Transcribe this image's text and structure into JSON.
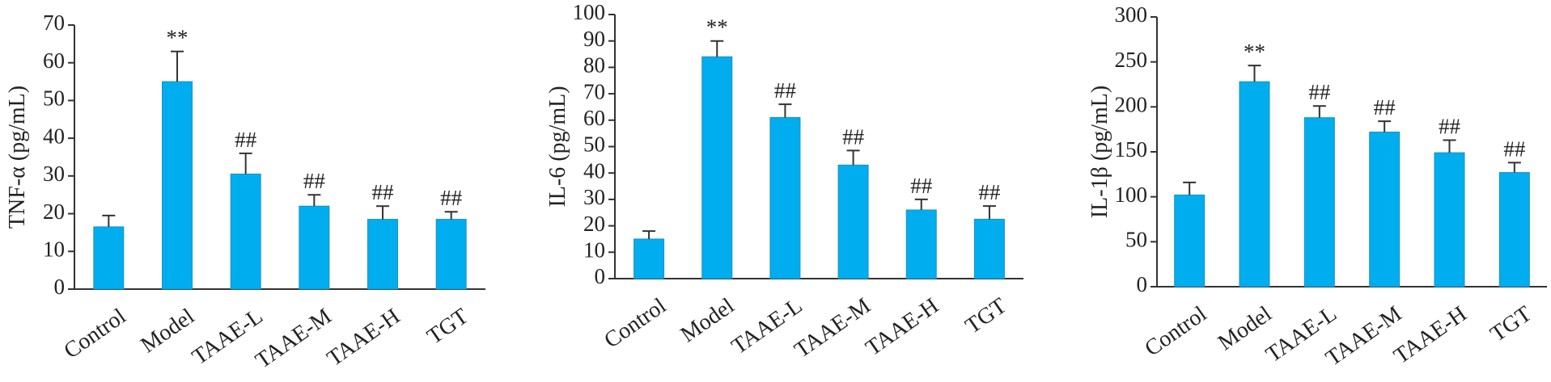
{
  "chart_data": [
    {
      "type": "bar",
      "ylabel": "TNF-α (pg/mL)",
      "color": "#00aeef",
      "categories": [
        "Control",
        "Model",
        "TAAE-L",
        "TAAE-M",
        "TAAE-H",
        "TGT"
      ],
      "values": [
        16.5,
        55,
        30.5,
        22,
        18.5,
        18.5
      ],
      "errors": [
        3,
        8,
        5.5,
        3,
        3.5,
        2
      ],
      "annotations": [
        null,
        "**",
        "##",
        "##",
        "##",
        "##"
      ],
      "ylim": [
        0,
        70
      ],
      "yticks": [
        0,
        10,
        20,
        30,
        40,
        50,
        60,
        70
      ]
    },
    {
      "type": "bar",
      "ylabel": "IL-6 (pg/mL)",
      "color": "#00aeef",
      "categories": [
        "Control",
        "Model",
        "TAAE-L",
        "TAAE-M",
        "TAAE-H",
        "TGT"
      ],
      "values": [
        15,
        84,
        61,
        43,
        26,
        22.5
      ],
      "errors": [
        3,
        6,
        5,
        5.5,
        4,
        5
      ],
      "annotations": [
        null,
        "**",
        "##",
        "##",
        "##",
        "##"
      ],
      "ylim": [
        0,
        100
      ],
      "yticks": [
        0,
        10,
        20,
        30,
        40,
        50,
        60,
        70,
        80,
        90,
        100
      ]
    },
    {
      "type": "bar",
      "ylabel": "IL-1β (pg/mL)",
      "color": "#00aeef",
      "categories": [
        "Control",
        "Model",
        "TAAE-L",
        "TAAE-M",
        "TAAE-H",
        "TGT"
      ],
      "values": [
        102,
        228,
        188,
        172,
        149,
        127
      ],
      "errors": [
        14,
        18,
        13,
        12,
        14,
        11
      ],
      "annotations": [
        null,
        "**",
        "##",
        "##",
        "##",
        "##"
      ],
      "ylim": [
        0,
        300
      ],
      "yticks": [
        0,
        50,
        100,
        150,
        200,
        250,
        300
      ]
    }
  ]
}
